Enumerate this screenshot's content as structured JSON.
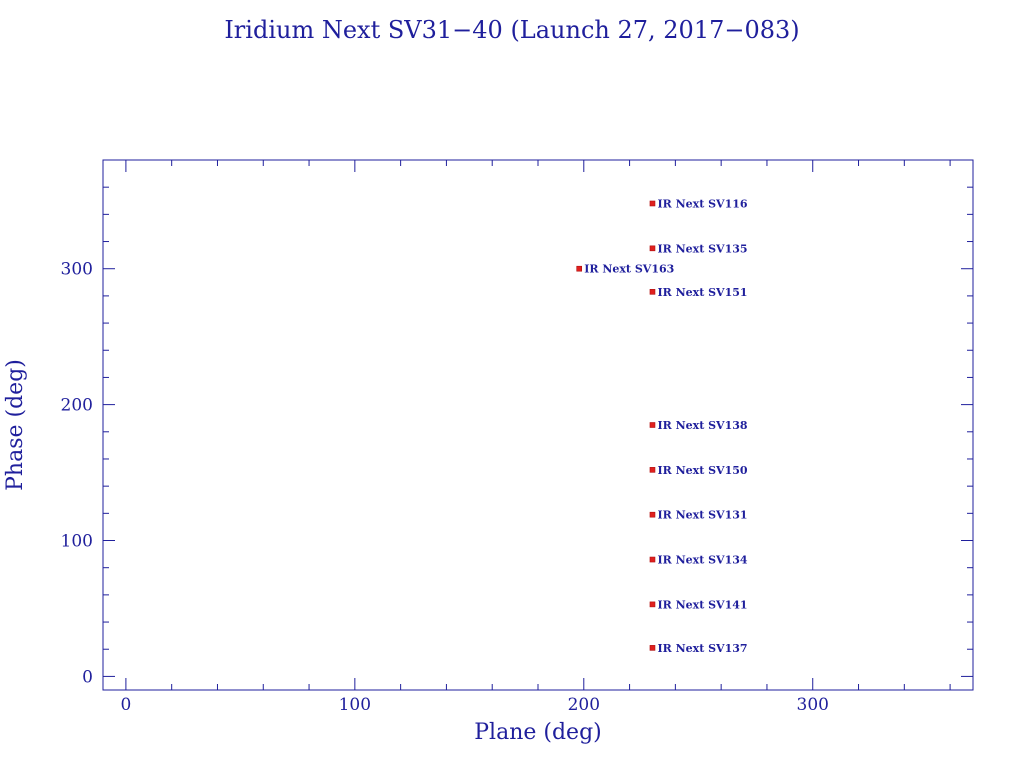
{
  "chart_data": {
    "type": "scatter",
    "title": "Iridium Next SV31−40 (Launch 27, 2017−083)",
    "xlabel": "Plane (deg)",
    "ylabel": "Phase (deg)",
    "xlim": [
      -10,
      370
    ],
    "ylim": [
      -10,
      380
    ],
    "xticks": [
      0,
      100,
      200,
      300
    ],
    "yticks": [
      0,
      100,
      200,
      300
    ],
    "x_minor_step": 20,
    "y_minor_step": 20,
    "grid": false,
    "colors": {
      "axes": "#1f1f9c",
      "text": "#1f1f9c",
      "marker": "#e0201e",
      "point_label": "#1f1f9c",
      "background": "#ffffff"
    },
    "points": [
      {
        "x": 230,
        "y": 348,
        "label": "IR Next SV116"
      },
      {
        "x": 230,
        "y": 315,
        "label": "IR Next SV135"
      },
      {
        "x": 198,
        "y": 300,
        "label": "IR Next SV163"
      },
      {
        "x": 230,
        "y": 283,
        "label": "IR Next SV151"
      },
      {
        "x": 230,
        "y": 185,
        "label": "IR Next SV138"
      },
      {
        "x": 230,
        "y": 152,
        "label": "IR Next SV150"
      },
      {
        "x": 230,
        "y": 119,
        "label": "IR Next SV131"
      },
      {
        "x": 230,
        "y": 86,
        "label": "IR Next SV134"
      },
      {
        "x": 230,
        "y": 53,
        "label": "IR Next SV141"
      },
      {
        "x": 230,
        "y": 21,
        "label": "IR Next SV137"
      }
    ]
  }
}
